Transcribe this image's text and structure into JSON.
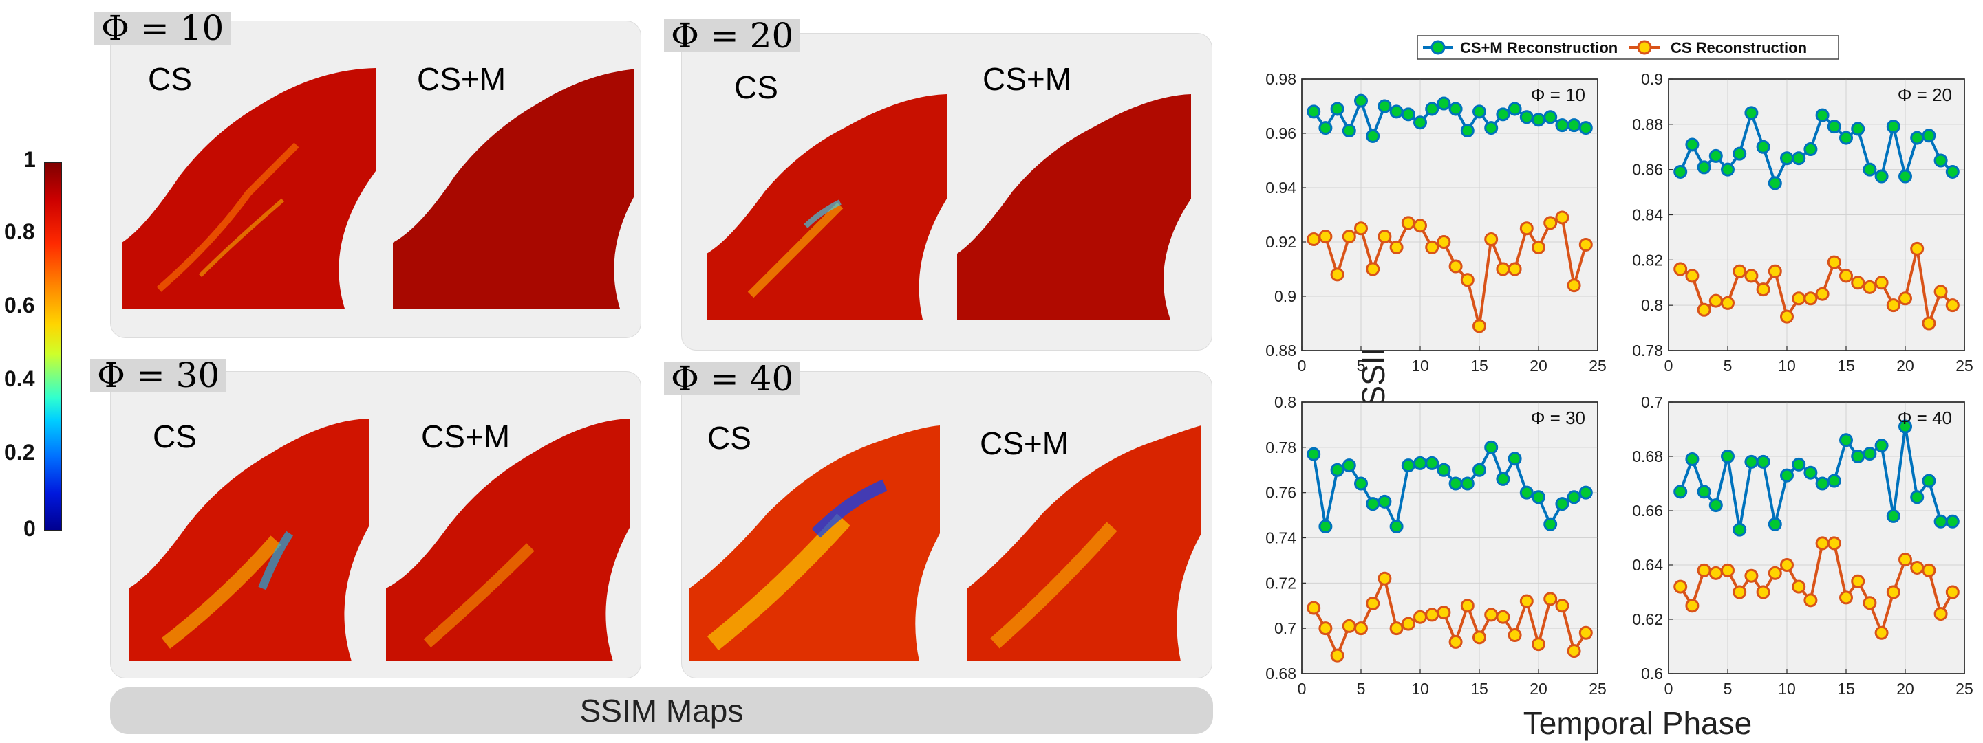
{
  "colorbar": {
    "ticks": [
      "1",
      "0.8",
      "0.6",
      "0.4",
      "0.2",
      "0"
    ]
  },
  "maps": {
    "panels": [
      {
        "phi": "Φ = 10",
        "left": "CS",
        "right": "CS+M"
      },
      {
        "phi": "Φ = 20",
        "left": "CS",
        "right": "CS+M"
      },
      {
        "phi": "Φ = 30",
        "left": "CS",
        "right": "CS+M"
      },
      {
        "phi": "Φ = 40",
        "left": "CS",
        "right": "CS+M"
      }
    ],
    "footer": "SSIM Maps"
  },
  "colors": {
    "csm": "#0072bd",
    "csm_marker": "#00c832",
    "cs": "#d95319",
    "cs_marker": "#ffd400"
  },
  "chart_data": {
    "type": "line",
    "ylabel": "MSSIM",
    "xlabel": "Temporal Phase",
    "legend": [
      "CS+M Reconstruction",
      "CS Reconstruction"
    ],
    "x": [
      1,
      2,
      3,
      4,
      5,
      6,
      7,
      8,
      9,
      10,
      11,
      12,
      13,
      14,
      15,
      16,
      17,
      18,
      19,
      20,
      21,
      22,
      23,
      24
    ],
    "xlim": [
      0,
      25
    ],
    "xticks": [
      0,
      5,
      10,
      15,
      20,
      25
    ],
    "subplots": [
      {
        "title": "Φ = 10",
        "ylim": [
          0.88,
          0.98
        ],
        "yticks": [
          0.88,
          0.9,
          0.92,
          0.94,
          0.96,
          0.98
        ],
        "yticklabels": [
          "0.88",
          "0.9",
          "0.92",
          "0.94",
          "0.96",
          "0.98"
        ],
        "series": [
          {
            "name": "CS+M Reconstruction",
            "values": [
              0.968,
              0.962,
              0.969,
              0.961,
              0.972,
              0.959,
              0.97,
              0.968,
              0.967,
              0.964,
              0.969,
              0.971,
              0.969,
              0.961,
              0.968,
              0.962,
              0.967,
              0.969,
              0.966,
              0.965,
              0.966,
              0.963,
              0.963,
              0.962
            ]
          },
          {
            "name": "CS Reconstruction",
            "values": [
              0.921,
              0.922,
              0.908,
              0.922,
              0.925,
              0.91,
              0.922,
              0.918,
              0.927,
              0.926,
              0.918,
              0.92,
              0.911,
              0.906,
              0.889,
              0.921,
              0.91,
              0.91,
              0.925,
              0.918,
              0.927,
              0.929,
              0.904,
              0.919
            ]
          }
        ]
      },
      {
        "title": "Φ = 20",
        "ylim": [
          0.78,
          0.9
        ],
        "yticks": [
          0.78,
          0.8,
          0.82,
          0.84,
          0.86,
          0.88,
          0.9
        ],
        "yticklabels": [
          "0.78",
          "0.8",
          "0.82",
          "0.84",
          "0.86",
          "0.88",
          "0.9"
        ],
        "series": [
          {
            "name": "CS+M Reconstruction",
            "values": [
              0.859,
              0.871,
              0.861,
              0.866,
              0.86,
              0.867,
              0.885,
              0.87,
              0.854,
              0.865,
              0.865,
              0.869,
              0.884,
              0.879,
              0.874,
              0.878,
              0.86,
              0.857,
              0.879,
              0.857,
              0.874,
              0.875,
              0.864,
              0.859
            ]
          },
          {
            "name": "CS Reconstruction",
            "values": [
              0.816,
              0.813,
              0.798,
              0.802,
              0.801,
              0.815,
              0.813,
              0.807,
              0.815,
              0.795,
              0.803,
              0.803,
              0.805,
              0.819,
              0.813,
              0.81,
              0.808,
              0.81,
              0.8,
              0.803,
              0.825,
              0.792,
              0.806,
              0.8
            ]
          }
        ]
      },
      {
        "title": "Φ = 30",
        "ylim": [
          0.68,
          0.8
        ],
        "yticks": [
          0.68,
          0.7,
          0.72,
          0.74,
          0.76,
          0.78,
          0.8
        ],
        "yticklabels": [
          "0.68",
          "0.7",
          "0.72",
          "0.74",
          "0.76",
          "0.78",
          "0.8"
        ],
        "series": [
          {
            "name": "CS+M Reconstruction",
            "values": [
              0.777,
              0.745,
              0.77,
              0.772,
              0.764,
              0.755,
              0.756,
              0.745,
              0.772,
              0.773,
              0.773,
              0.77,
              0.764,
              0.764,
              0.77,
              0.78,
              0.766,
              0.775,
              0.76,
              0.758,
              0.746,
              0.755,
              0.758,
              0.76
            ]
          },
          {
            "name": "CS Reconstruction",
            "values": [
              0.709,
              0.7,
              0.688,
              0.701,
              0.7,
              0.711,
              0.722,
              0.7,
              0.702,
              0.705,
              0.706,
              0.707,
              0.694,
              0.71,
              0.696,
              0.706,
              0.705,
              0.697,
              0.712,
              0.693,
              0.713,
              0.71,
              0.69,
              0.698
            ]
          }
        ]
      },
      {
        "title": "Φ = 40",
        "ylim": [
          0.6,
          0.7
        ],
        "yticks": [
          0.6,
          0.62,
          0.64,
          0.66,
          0.68,
          0.7
        ],
        "yticklabels": [
          "0.6",
          "0.62",
          "0.64",
          "0.66",
          "0.68",
          "0.7"
        ],
        "series": [
          {
            "name": "CS+M Reconstruction",
            "values": [
              0.667,
              0.679,
              0.667,
              0.662,
              0.68,
              0.653,
              0.678,
              0.678,
              0.655,
              0.673,
              0.677,
              0.674,
              0.67,
              0.671,
              0.686,
              0.68,
              0.681,
              0.684,
              0.658,
              0.691,
              0.665,
              0.671,
              0.656,
              0.656
            ]
          },
          {
            "name": "CS Reconstruction",
            "values": [
              0.632,
              0.625,
              0.638,
              0.637,
              0.638,
              0.63,
              0.636,
              0.63,
              0.637,
              0.64,
              0.632,
              0.627,
              0.648,
              0.648,
              0.628,
              0.634,
              0.626,
              0.615,
              0.63,
              0.642,
              0.639,
              0.638,
              0.622,
              0.63
            ]
          }
        ]
      }
    ]
  }
}
